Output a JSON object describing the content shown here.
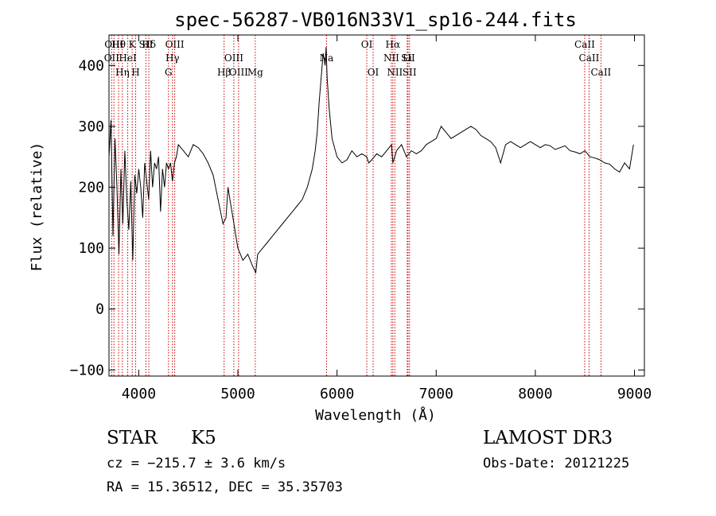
{
  "chart_data": {
    "type": "line",
    "title": "spec-56287-VB016N33V1_sp16-244.fits",
    "xlabel": "Wavelength (Å)",
    "ylabel": "Flux (relative)",
    "xlim": [
      3700,
      9100
    ],
    "ylim": [
      -110,
      450
    ],
    "xticks": [
      4000,
      5000,
      6000,
      7000,
      8000,
      9000
    ],
    "yticks": [
      -100,
      0,
      100,
      200,
      300,
      400
    ],
    "grid": false,
    "line_color": "#000000",
    "marker_color": "#cc0000",
    "series": [
      {
        "x": [
          3700,
          3720,
          3740,
          3760,
          3780,
          3800,
          3820,
          3840,
          3860,
          3880,
          3900,
          3920,
          3940,
          3960,
          3980,
          4000,
          4020,
          4040,
          4060,
          4080,
          4100,
          4120,
          4140,
          4160,
          4180,
          4200,
          4220,
          4240,
          4260,
          4280,
          4300,
          4320,
          4340,
          4360,
          4380,
          4400,
          4450,
          4500,
          4550,
          4600,
          4650,
          4700,
          4750,
          4800,
          4850,
          4880,
          4900,
          4920,
          4950,
          4980,
          5000,
          5050,
          5100,
          5150,
          5180,
          5200,
          5250,
          5300,
          5350,
          5400,
          5450,
          5500,
          5550,
          5600,
          5650,
          5700,
          5750,
          5780,
          5800,
          5820,
          5840,
          5860,
          5880,
          5890,
          5900,
          5920,
          5950,
          6000,
          6050,
          6100,
          6150,
          6200,
          6250,
          6300,
          6320,
          6350,
          6400,
          6450,
          6500,
          6550,
          6563,
          6600,
          6650,
          6700,
          6750,
          6800,
          6850,
          6900,
          6950,
          7000,
          7050,
          7100,
          7150,
          7200,
          7250,
          7300,
          7350,
          7400,
          7450,
          7500,
          7550,
          7600,
          7650,
          7700,
          7750,
          7800,
          7850,
          7900,
          7950,
          8000,
          8050,
          8100,
          8150,
          8200,
          8250,
          8300,
          8350,
          8400,
          8450,
          8500,
          8550,
          8600,
          8650,
          8700,
          8750,
          8800,
          8850,
          8900,
          8950,
          8990
        ],
        "y": [
          250,
          310,
          120,
          280,
          200,
          90,
          230,
          140,
          260,
          180,
          130,
          210,
          80,
          220,
          190,
          230,
          200,
          150,
          240,
          210,
          180,
          260,
          200,
          240,
          230,
          250,
          160,
          230,
          200,
          240,
          230,
          240,
          210,
          240,
          250,
          270,
          260,
          250,
          270,
          265,
          255,
          240,
          220,
          180,
          140,
          150,
          200,
          180,
          150,
          120,
          100,
          80,
          90,
          70,
          60,
          90,
          100,
          110,
          120,
          130,
          140,
          150,
          160,
          170,
          180,
          200,
          230,
          260,
          290,
          340,
          380,
          420,
          400,
          430,
          380,
          330,
          280,
          250,
          240,
          245,
          260,
          250,
          255,
          250,
          240,
          245,
          255,
          250,
          260,
          270,
          240,
          260,
          270,
          250,
          260,
          255,
          260,
          270,
          275,
          280,
          300,
          290,
          280,
          285,
          290,
          295,
          300,
          295,
          285,
          280,
          275,
          265,
          240,
          270,
          275,
          270,
          265,
          270,
          275,
          270,
          265,
          270,
          268,
          262,
          265,
          268,
          260,
          258,
          255,
          260,
          250,
          248,
          245,
          240,
          238,
          230,
          225,
          240,
          230,
          270
        ]
      }
    ],
    "line_markers": [
      {
        "x": 3727,
        "labels": [
          "OII"
        ]
      },
      {
        "x": 3750,
        "labels": [
          "OIII"
        ]
      },
      {
        "x": 3797,
        "labels": [
          "Hθ"
        ]
      },
      {
        "x": 3835,
        "labels": [
          "Hη"
        ]
      },
      {
        "x": 3889,
        "labels": [
          "HeI"
        ]
      },
      {
        "x": 3934,
        "labels": [
          "K"
        ]
      },
      {
        "x": 3969,
        "labels": [
          "H"
        ]
      },
      {
        "x": 4072,
        "labels": [
          "SII"
        ]
      },
      {
        "x": 4102,
        "labels": [
          "Hδ"
        ]
      },
      {
        "x": 4300,
        "labels": [
          "G"
        ]
      },
      {
        "x": 4340,
        "labels": [
          "Hγ"
        ]
      },
      {
        "x": 4363,
        "labels": [
          "OIII"
        ]
      },
      {
        "x": 4861,
        "labels": [
          "Hβ"
        ]
      },
      {
        "x": 4959,
        "labels": [
          "OIII"
        ]
      },
      {
        "x": 5007,
        "labels": [
          "OIII"
        ]
      },
      {
        "x": 5175,
        "labels": [
          "Mg"
        ]
      },
      {
        "x": 5894,
        "labels": [
          "Na"
        ]
      },
      {
        "x": 6300,
        "labels": [
          "OI"
        ]
      },
      {
        "x": 6364,
        "labels": [
          "OI"
        ]
      },
      {
        "x": 6548,
        "labels": [
          "NII"
        ]
      },
      {
        "x": 6563,
        "labels": [
          "Hα"
        ]
      },
      {
        "x": 6583,
        "labels": [
          "NII"
        ]
      },
      {
        "x": 6708,
        "labels": [
          "Li"
        ]
      },
      {
        "x": 6716,
        "labels": [
          "SII"
        ]
      },
      {
        "x": 6731,
        "labels": [
          "SII"
        ]
      },
      {
        "x": 8498,
        "labels": [
          "CaII"
        ]
      },
      {
        "x": 8542,
        "labels": [
          "CaII"
        ]
      },
      {
        "x": 8662,
        "labels": [
          "CaII"
        ]
      }
    ],
    "marker_label_rows": [
      [
        "Hθ",
        "K",
        "Hδ",
        "OIII",
        "OIII",
        "OI",
        "Hα",
        "SII",
        "CaII"
      ],
      [
        "OII",
        "HeI",
        "SII",
        "Hγ",
        "OIII",
        "Na",
        "NII",
        "Li",
        "CaII"
      ],
      [
        "OIII",
        "Hη",
        "H",
        "G",
        "Hβ",
        "Mg",
        "OI",
        "NII",
        "SII",
        "CaII"
      ]
    ]
  },
  "info": {
    "class": "STAR",
    "subclass": "K5",
    "survey": "LAMOST DR3",
    "cz": "cz = −215.7 ± 3.6 km/s",
    "obs_date": "Obs-Date: 20121225",
    "radec": "RA =  15.36512, DEC =  35.35703"
  }
}
